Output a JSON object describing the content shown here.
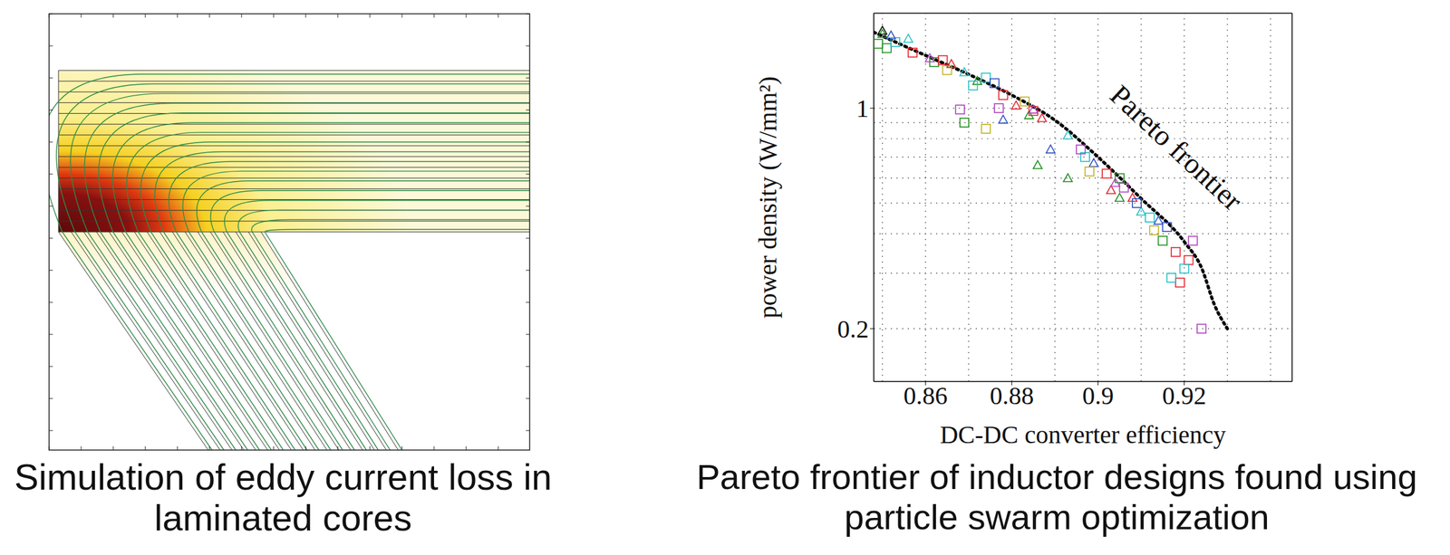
{
  "simulation": {
    "caption": "Simulation of eddy current loss in laminated cores"
  },
  "chart_data": {
    "type": "scatter",
    "title": "Pareto frontier of inductor designs found using particle swarm optimization",
    "x_label": "DC-DC converter efficiency",
    "y_label": "power density  (W/mm²)",
    "xlim": [
      0.848,
      0.945
    ],
    "ylim": [
      0.136,
      2.0
    ],
    "xticks": [
      0.86,
      0.88,
      0.9,
      0.92
    ],
    "yticks": [
      0.2,
      1
    ],
    "log": "y",
    "grid": true,
    "series": [
      {
        "color": "#1f8f1f",
        "marker": "square",
        "x": [
          0.849,
          0.851,
          0.862,
          0.869,
          0.905,
          0.915
        ],
        "values": [
          1.6,
          1.55,
          1.4,
          0.9,
          0.6,
          0.38
        ]
      },
      {
        "color": "#1f8f1f",
        "marker": "triangle",
        "x": [
          0.85,
          0.872,
          0.884,
          0.886,
          0.893,
          0.905
        ],
        "values": [
          1.72,
          1.22,
          0.95,
          0.66,
          0.6,
          0.52
        ]
      },
      {
        "color": "#e8202a",
        "marker": "square",
        "x": [
          0.857,
          0.864,
          0.878,
          0.885,
          0.902,
          0.918,
          0.919,
          0.921
        ],
        "values": [
          1.5,
          1.42,
          1.1,
          0.98,
          0.62,
          0.35,
          0.28,
          0.33
        ]
      },
      {
        "color": "#e8202a",
        "marker": "triangle",
        "x": [
          0.866,
          0.881,
          0.887,
          0.903,
          0.908
        ],
        "values": [
          1.38,
          1.02,
          0.93,
          0.55,
          0.52
        ]
      },
      {
        "color": "#20c0c8",
        "marker": "square",
        "x": [
          0.853,
          0.871,
          0.874,
          0.897,
          0.912,
          0.917,
          0.92
        ],
        "values": [
          1.62,
          1.18,
          1.25,
          0.7,
          0.45,
          0.29,
          0.31
        ]
      },
      {
        "color": "#20c0c8",
        "marker": "triangle",
        "x": [
          0.856,
          0.869,
          0.893,
          0.91
        ],
        "values": [
          1.66,
          1.3,
          0.82,
          0.47
        ]
      },
      {
        "color": "#b040c0",
        "marker": "square",
        "x": [
          0.868,
          0.877,
          0.896,
          0.906,
          0.922,
          0.924
        ],
        "values": [
          0.99,
          1.0,
          0.74,
          0.56,
          0.38,
          0.2
        ]
      },
      {
        "color": "#b040c0",
        "marker": "triangle",
        "x": [
          0.861,
          0.885,
          0.904
        ],
        "values": [
          1.44,
          0.99,
          0.58
        ]
      },
      {
        "color": "#3050c0",
        "marker": "triangle",
        "x": [
          0.852,
          0.878,
          0.889,
          0.899,
          0.914
        ],
        "values": [
          1.7,
          0.92,
          0.74,
          0.67,
          0.44
        ]
      },
      {
        "color": "#3050c0",
        "marker": "square",
        "x": [
          0.876,
          0.909,
          0.916
        ],
        "values": [
          1.2,
          0.5,
          0.42
        ]
      },
      {
        "color": "#c0b020",
        "marker": "square",
        "x": [
          0.865,
          0.874,
          0.883,
          0.898,
          0.913
        ],
        "values": [
          1.32,
          0.86,
          1.05,
          0.63,
          0.41
        ]
      },
      {
        "color": "#000000",
        "marker": "triangle",
        "x": [
          0.85
        ],
        "values": [
          1.76
        ]
      },
      {
        "name": "Pareto frontier",
        "type": "line",
        "line_style": "dotted",
        "color": "#000000",
        "x": [
          0.848,
          0.86,
          0.87,
          0.88,
          0.89,
          0.9,
          0.91,
          0.92,
          0.924,
          0.927,
          0.93
        ],
        "values": [
          1.74,
          1.47,
          1.28,
          1.1,
          0.916,
          0.7,
          0.517,
          0.377,
          0.312,
          0.238,
          0.2
        ]
      }
    ]
  }
}
